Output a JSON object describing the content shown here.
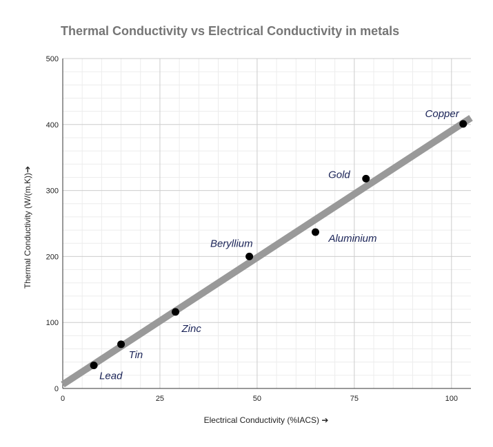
{
  "chart_data": {
    "type": "scatter",
    "title": "Thermal Conductivity vs Electrical Conductivity in metals",
    "xlabel": "Electrical Conductivity (%IACS) ➔",
    "ylabel": "Thermal Conductivity (W/(m.K))➔",
    "xlim": [
      0,
      105
    ],
    "ylim": [
      0,
      500
    ],
    "x_ticks": [
      0,
      25,
      50,
      75,
      100
    ],
    "y_ticks": [
      0,
      100,
      200,
      300,
      400,
      500
    ],
    "grid": true,
    "points": [
      {
        "label": "Lead",
        "x": 8,
        "y": 35
      },
      {
        "label": "Tin",
        "x": 15,
        "y": 67
      },
      {
        "label": "Zinc",
        "x": 29,
        "y": 116
      },
      {
        "label": "Beryllium",
        "x": 48,
        "y": 200
      },
      {
        "label": "Aluminium",
        "x": 65,
        "y": 237
      },
      {
        "label": "Gold",
        "x": 78,
        "y": 318
      },
      {
        "label": "Copper",
        "x": 103,
        "y": 401
      }
    ],
    "trendline": {
      "type": "linear",
      "x": [
        0,
        105
      ],
      "y": [
        6,
        410
      ]
    },
    "colors": {
      "points": "#000000",
      "trendline": "#999999",
      "labels": "#1a2357"
    }
  }
}
